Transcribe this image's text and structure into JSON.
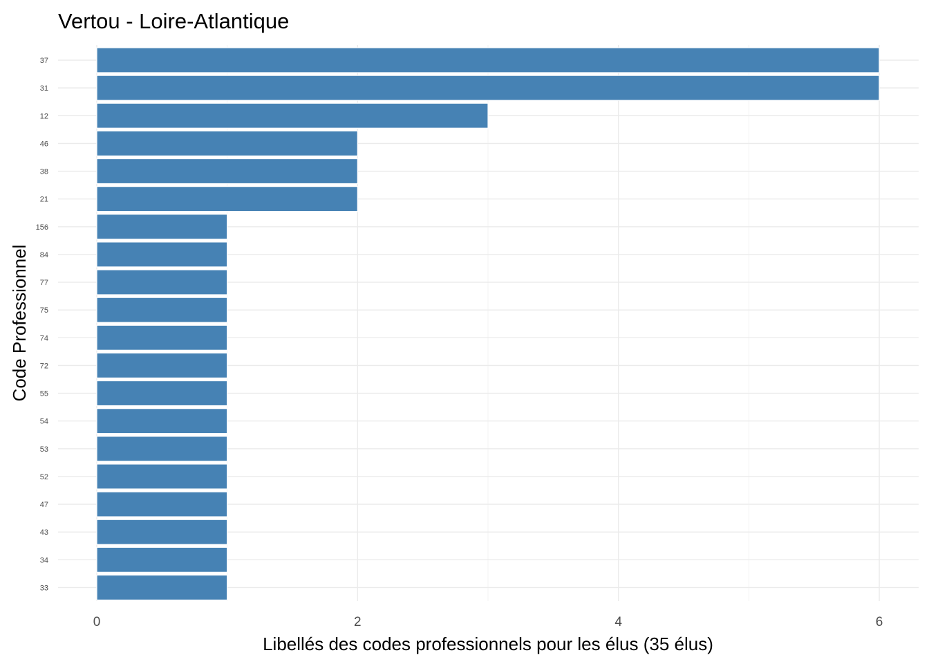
{
  "chart_data": {
    "type": "bar",
    "orientation": "horizontal",
    "title": "Vertou - Loire-Atlantique",
    "xlabel": "Libellés des codes professionnels pour les élus (35 élus)",
    "ylabel": "Code Professionnel",
    "categories": [
      "37",
      "31",
      "12",
      "46",
      "38",
      "21",
      "156",
      "84",
      "77",
      "75",
      "74",
      "72",
      "55",
      "54",
      "53",
      "52",
      "47",
      "43",
      "34",
      "33"
    ],
    "values": [
      6,
      6,
      3,
      2,
      2,
      2,
      1,
      1,
      1,
      1,
      1,
      1,
      1,
      1,
      1,
      1,
      1,
      1,
      1,
      1
    ],
    "xlim": [
      0,
      6
    ],
    "x_ticks": [
      0,
      2,
      4,
      6
    ],
    "x_tick_labels": [
      "0",
      "2",
      "4",
      "6"
    ],
    "grid": true,
    "legend": "none",
    "colors": {
      "bar": "#4682b4",
      "bar_outline": "#ffffff",
      "grid_major": "#ebebeb",
      "grid_minor": "#f2f2f2",
      "tick_text": "#4d4d4d",
      "title_text": "#000000"
    }
  }
}
